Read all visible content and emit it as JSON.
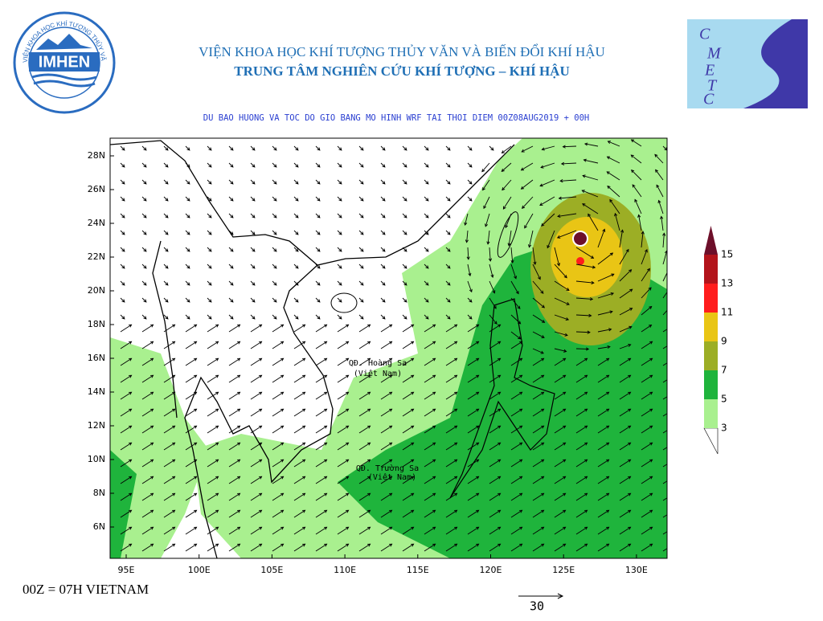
{
  "header": {
    "institute": "VIỆN KHOA HỌC KHÍ TƯỢNG THỦY VĂN VÀ BIẾN ĐỔI KHÍ HẬU",
    "center": "TRUNG TÂM NGHIÊN CỨU KHÍ TƯỢNG – KHÍ HẬU",
    "subtitle": "DU BAO HUONG VA TOC DO GIO BANG MO HINH WRF TAI THOI DIEM  00Z08AUG2019 + 00H"
  },
  "logos": {
    "left": "IMHEN",
    "left_ring": "VIỆN KHOA HỌC KHÍ TƯỢNG THỦY VĂN VÀ BIẾN ĐỔI KHÍ HẬU",
    "right_letters": [
      "C",
      "M",
      "E",
      "T",
      "C"
    ]
  },
  "map": {
    "lat_labels": [
      "28N",
      "26N",
      "24N",
      "22N",
      "20N",
      "18N",
      "16N",
      "14N",
      "12N",
      "10N",
      "8N",
      "6N"
    ],
    "lon_labels": [
      "95E",
      "100E",
      "105E",
      "110E",
      "115E",
      "120E",
      "125E",
      "130E"
    ],
    "places": [
      {
        "name": "QĐ. Hoàng Sa",
        "note": "(Việt Nam)"
      },
      {
        "name": "QĐ. Trường Sa",
        "note": "(Việt Nam)"
      }
    ]
  },
  "legend": {
    "levels": [
      3,
      5,
      7,
      9,
      11,
      13,
      15
    ],
    "colors": [
      "#a9f08f",
      "#1fb43c",
      "#9cae25",
      "#e9c515",
      "#ff1d1d",
      "#b3141b",
      "#6d0f2a"
    ]
  },
  "footer": {
    "time_note": "00Z = 07H VIETNAM",
    "reference_vector": "30"
  }
}
